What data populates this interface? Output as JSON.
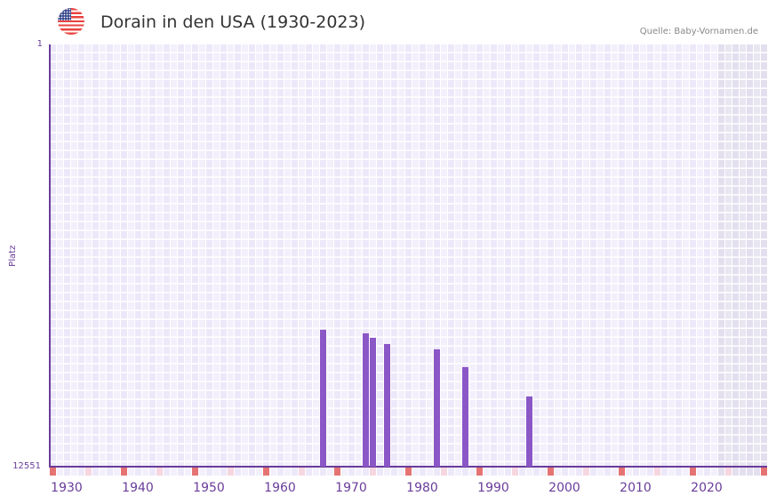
{
  "header": {
    "title": "Dorain in den USA (1930-2023)",
    "source": "Quelle: Baby-Vornamen.de",
    "flag_icon": "us-flag-icon"
  },
  "colors": {
    "bar": "#8b57c7",
    "axis": "#6a3d9a",
    "grid_a": "#ede8f9",
    "grid_b": "#f3f0fc",
    "shaded_a": "#e3dfef",
    "shaded_b": "#e8e6f1",
    "decade_marker": "#e57373",
    "mid_marker": "#f6d6e0"
  },
  "chart_data": {
    "type": "bar",
    "title": "Dorain in den USA (1930-2023)",
    "xlabel": "",
    "ylabel": "Platz",
    "y_inverted": true,
    "ylim": [
      1,
      12551
    ],
    "y_ticks": [
      "1",
      "12551"
    ],
    "x_range": [
      1928,
      2028
    ],
    "x_ticks": [
      "1930",
      "1940",
      "1950",
      "1960",
      "1970",
      "1980",
      "1990",
      "2000",
      "2010",
      "2020"
    ],
    "shaded_from_year": 2022,
    "grid": true,
    "legend": null,
    "categories": [
      "1966",
      "1972",
      "1973",
      "1975",
      "1982",
      "1986",
      "1995"
    ],
    "values": [
      8482,
      8588,
      8720,
      8905,
      9063,
      9592,
      10464
    ],
    "value_meaning": "Rank (Platz); lower is more popular"
  },
  "axis_labels": {
    "y_title": "Platz",
    "y_top": "1",
    "y_bottom": "12551"
  }
}
